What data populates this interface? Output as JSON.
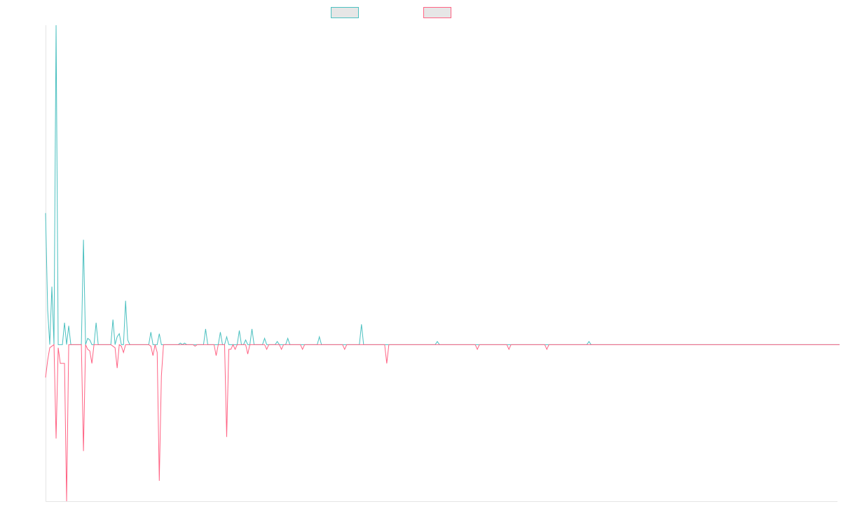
{
  "chart_data": {
    "type": "line",
    "title": "",
    "xlabel": "",
    "ylabel": "",
    "grid": false,
    "legend_position": "top-center",
    "x_count": 377,
    "ylim": [
      -1.0,
      2.04
    ],
    "series": [
      {
        "color": "#4bc0c0",
        "fill": "#e6e6e6",
        "baseline": 0,
        "points": [
          [
            0,
            0.84
          ],
          [
            1,
            0.22
          ],
          [
            2,
            0
          ],
          [
            3,
            0.37
          ],
          [
            4,
            0
          ],
          [
            5,
            2.04
          ],
          [
            6,
            0
          ],
          [
            7,
            0
          ],
          [
            8,
            0
          ],
          [
            9,
            0.14
          ],
          [
            10,
            0
          ],
          [
            11,
            0.12
          ],
          [
            12,
            0
          ],
          [
            18,
            0.67
          ],
          [
            19,
            0
          ],
          [
            20,
            0.04
          ],
          [
            21,
            0.03
          ],
          [
            22,
            0
          ],
          [
            24,
            0.14
          ],
          [
            25,
            0
          ],
          [
            32,
            0.16
          ],
          [
            33,
            0
          ],
          [
            34,
            0.05
          ],
          [
            35,
            0.07
          ],
          [
            36,
            0
          ],
          [
            38,
            0.28
          ],
          [
            39,
            0.03
          ],
          [
            40,
            0
          ],
          [
            50,
            0.08
          ],
          [
            51,
            0
          ],
          [
            54,
            0.07
          ],
          [
            55,
            0
          ],
          [
            56,
            0
          ],
          [
            64,
            0.01
          ],
          [
            66,
            0.01
          ],
          [
            68,
            0
          ],
          [
            76,
            0.1
          ],
          [
            77,
            0
          ],
          [
            83,
            0.08
          ],
          [
            84,
            0
          ],
          [
            86,
            0.05
          ],
          [
            87,
            0
          ],
          [
            88,
            0
          ],
          [
            92,
            0.09
          ],
          [
            93,
            0
          ],
          [
            95,
            0.03
          ],
          [
            96,
            0
          ],
          [
            98,
            0.1
          ],
          [
            99,
            0
          ],
          [
            104,
            0.04
          ],
          [
            105,
            0
          ],
          [
            110,
            0.02
          ],
          [
            111,
            0
          ],
          [
            115,
            0.04
          ],
          [
            116,
            0
          ],
          [
            130,
            0.05
          ],
          [
            131,
            0
          ],
          [
            150,
            0.13
          ],
          [
            151,
            0
          ],
          [
            186,
            0.02
          ],
          [
            187,
            0
          ],
          [
            258,
            0.02
          ],
          [
            259,
            0
          ],
          [
            377,
            0
          ]
        ]
      },
      {
        "color": "#ff6384",
        "fill": "#e6e6e6",
        "baseline": 0,
        "points": [
          [
            0,
            -0.21
          ],
          [
            1,
            -0.1
          ],
          [
            2,
            -0.02
          ],
          [
            3,
            -0.01
          ],
          [
            4,
            0
          ],
          [
            5,
            -0.6
          ],
          [
            6,
            -0.02
          ],
          [
            7,
            -0.12
          ],
          [
            8,
            -0.12
          ],
          [
            9,
            -0.12
          ],
          [
            10,
            -1.0
          ],
          [
            11,
            0
          ],
          [
            12,
            0
          ],
          [
            18,
            -0.68
          ],
          [
            19,
            0
          ],
          [
            20,
            -0.03
          ],
          [
            21,
            -0.04
          ],
          [
            22,
            -0.12
          ],
          [
            23,
            0
          ],
          [
            32,
            -0.01
          ],
          [
            33,
            -0.02
          ],
          [
            34,
            -0.15
          ],
          [
            35,
            0
          ],
          [
            36,
            -0.01
          ],
          [
            37,
            -0.05
          ],
          [
            38,
            0
          ],
          [
            50,
            -0.01
          ],
          [
            51,
            -0.07
          ],
          [
            52,
            0
          ],
          [
            53,
            -0.05
          ],
          [
            54,
            -0.87
          ],
          [
            55,
            -0.2
          ],
          [
            56,
            0
          ],
          [
            71,
            -0.01
          ],
          [
            72,
            0
          ],
          [
            81,
            -0.07
          ],
          [
            82,
            0
          ],
          [
            86,
            -0.59
          ],
          [
            87,
            -0.03
          ],
          [
            88,
            -0.03
          ],
          [
            89,
            0
          ],
          [
            90,
            -0.03
          ],
          [
            91,
            0
          ],
          [
            96,
            -0.06
          ],
          [
            97,
            0
          ],
          [
            105,
            -0.03
          ],
          [
            106,
            0
          ],
          [
            112,
            -0.03
          ],
          [
            113,
            0
          ],
          [
            122,
            -0.03
          ],
          [
            123,
            0
          ],
          [
            142,
            -0.03
          ],
          [
            143,
            0
          ],
          [
            162,
            -0.12
          ],
          [
            163,
            0
          ],
          [
            205,
            -0.03
          ],
          [
            206,
            0
          ],
          [
            220,
            -0.03
          ],
          [
            221,
            0
          ],
          [
            238,
            -0.03
          ],
          [
            239,
            0
          ],
          [
            377,
            0
          ]
        ]
      }
    ]
  }
}
